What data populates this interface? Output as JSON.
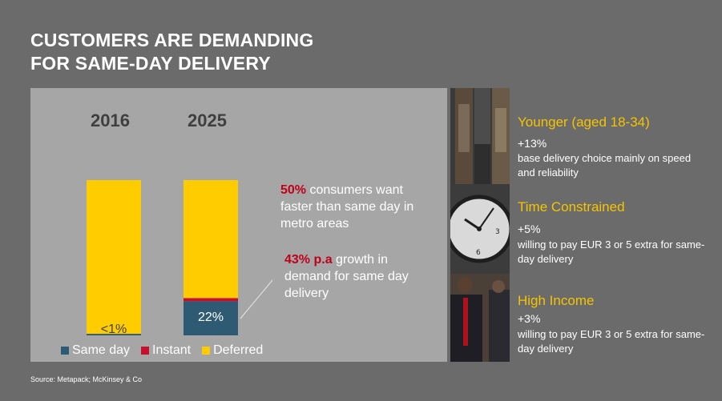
{
  "title": {
    "line1": "CUSTOMERS ARE DEMANDING",
    "line2": "FOR SAME-DAY DELIVERY"
  },
  "chart_data": {
    "type": "bar",
    "stacked": true,
    "categories": [
      "2016",
      "2025"
    ],
    "series": [
      {
        "name": "Same day",
        "values": [
          1,
          22
        ],
        "color": "#2e5a73"
      },
      {
        "name": "Instant",
        "values": [
          0,
          2
        ],
        "color": "#c8102e"
      },
      {
        "name": "Deferred",
        "values": [
          99,
          76
        ],
        "color": "#ffcc00"
      }
    ],
    "data_labels": [
      "<1%",
      "22%"
    ],
    "ylim": [
      0,
      100
    ],
    "legend_position": "bottom"
  },
  "callouts": {
    "c1_highlight": "50%",
    "c1_line1_rest": " consumers want",
    "c1_line2": "faster than same day in",
    "c1_line3": "metro areas",
    "c2_highlight": "43% p.a",
    "c2_line1_rest": " growth in",
    "c2_line2": "demand for same day",
    "c2_line3": "delivery"
  },
  "segments": [
    {
      "heading": "Younger (aged 18-34)",
      "pct": "+13%",
      "desc": "base delivery choice mainly on speed and reliability"
    },
    {
      "heading": "Time Constrained",
      "pct": "+5%",
      "desc": "willing to pay EUR 3 or 5 extra  for same-day delivery"
    },
    {
      "heading": "High Income",
      "pct": "+3%",
      "desc": "willing to pay EUR 3 or 5 extra for same-day delivery"
    }
  ],
  "source": "Source: Metapack; McKinsey & Co"
}
